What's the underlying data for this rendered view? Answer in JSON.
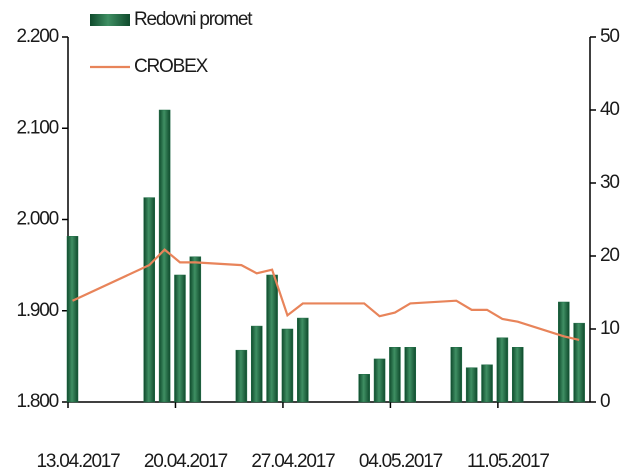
{
  "chart_data": {
    "type": "bar_line",
    "x": [
      "13.04.2017",
      "18.04.2017",
      "19.04.2017",
      "20.04.2017",
      "21.04.2017",
      "24.04.2017",
      "25.04.2017",
      "26.04.2017",
      "27.04.2017",
      "28.04.2017",
      "02.05.2017",
      "03.05.2017",
      "04.05.2017",
      "05.05.2017",
      "08.05.2017",
      "09.05.2017",
      "10.05.2017",
      "11.05.2017",
      "12.05.2017",
      "15.05.2017",
      "16.05.2017"
    ],
    "series": [
      {
        "name": "Redovni promet",
        "type": "bar",
        "axis": "y2",
        "color": "#1f6b45",
        "values": [
          22.7,
          28,
          40,
          17.4,
          19.9,
          7.1,
          10.4,
          17.4,
          10,
          11.5,
          3.8,
          5.9,
          7.5,
          7.5,
          7.5,
          4.7,
          5.1,
          8.8,
          7.5,
          13.7,
          10.8
        ]
      },
      {
        "name": "CROBEX",
        "type": "line",
        "axis": "y",
        "color": "#e8845a",
        "values": [
          1911,
          1950,
          1967,
          1953,
          1953,
          1950,
          1941,
          1945,
          1895,
          1908,
          1908,
          1894,
          1898,
          1908,
          1911,
          1901,
          1901,
          1891,
          1888,
          1872,
          1868
        ]
      }
    ],
    "xlim": [
      "13.04.2017",
      "17.05.2017"
    ],
    "xticks": [
      "13.04.2017",
      "20.04.2017",
      "27.04.2017",
      "04.05.2017",
      "11.05.2017"
    ],
    "ylim": [
      1800,
      2200
    ],
    "yticks": [
      {
        "value": 1800,
        "label": "1.800"
      },
      {
        "value": 1900,
        "label": "1.900"
      },
      {
        "value": 2000,
        "label": "2.000"
      },
      {
        "value": 2100,
        "label": "2.100"
      },
      {
        "value": 2200,
        "label": "2.200"
      }
    ],
    "y2lim": [
      0,
      50
    ],
    "y2ticks": [
      0,
      10,
      20,
      30,
      40,
      50
    ],
    "legend": "top-left"
  }
}
